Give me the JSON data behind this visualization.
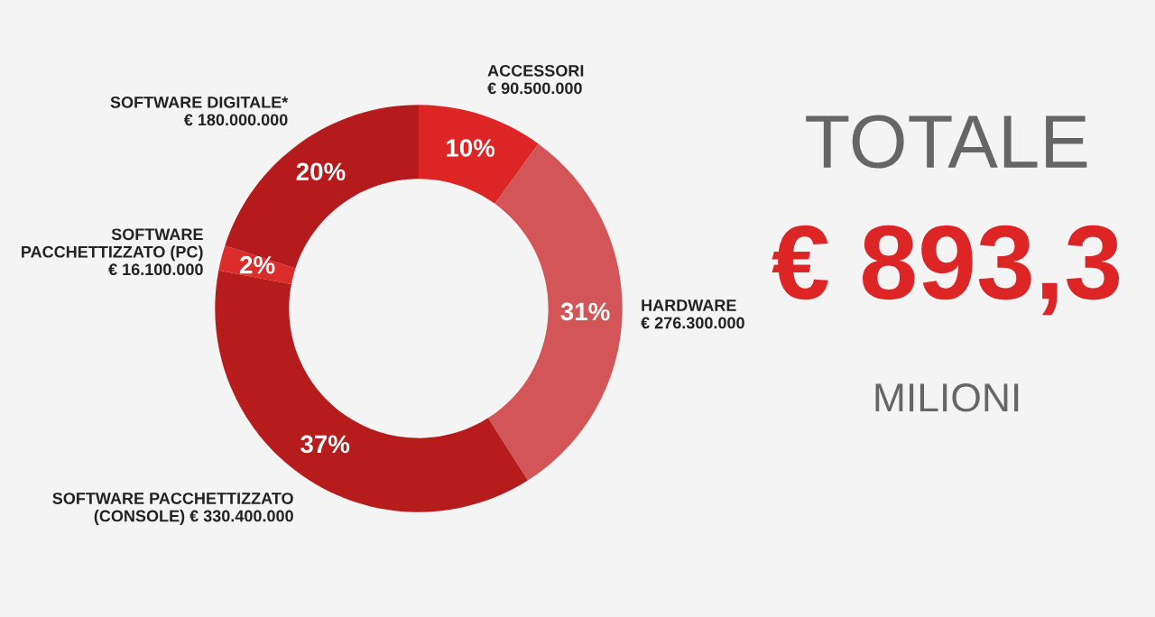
{
  "chart_data": {
    "type": "donut",
    "categories": [
      "ACCESSORI\n€ 90.500.000",
      "HARDWARE\n€ 276.300.000",
      "SOFTWARE PACCHETTIZZATO\n(CONSOLE) € 330.400.000",
      "SOFTWARE\nPACCHETTIZZATO (PC)\n€ 16.100.000",
      "SOFTWARE DIGITALE*\n€ 180.000.000"
    ],
    "values": [
      10,
      31,
      37,
      2,
      20
    ],
    "colors": [
      "#dd2526",
      "#d35557",
      "#b71c1c",
      "#dc2b2b",
      "#b51b1c"
    ],
    "value_labels": [
      "10%",
      "31%",
      "37%",
      "2%",
      "20%"
    ],
    "annotations": [
      "TOTALE",
      "€ 893,3",
      "MILIONI"
    ],
    "legend": false
  }
}
